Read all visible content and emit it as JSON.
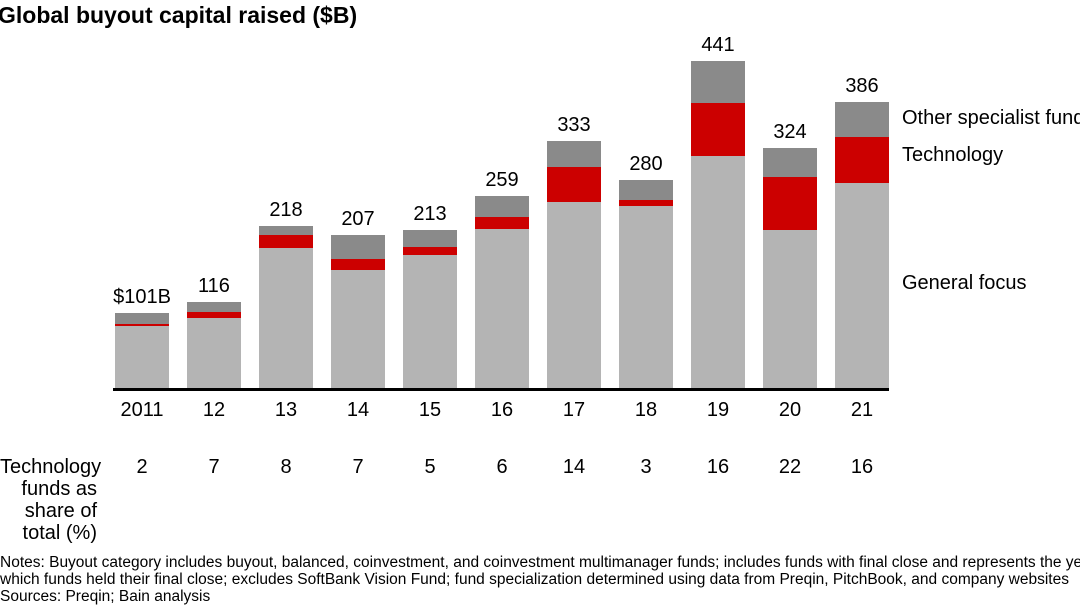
{
  "title": "Global buyout capital raised ($B)",
  "legend": {
    "other": "Other specialist funds",
    "technology": "Technology",
    "general": "General focus"
  },
  "row_label": {
    "line1": "Technology",
    "line2": "funds as",
    "line3": "share of",
    "line4": "total (%)"
  },
  "notes": {
    "line1": "Notes: Buyout category includes buyout, balanced, coinvestment, and coinvestment multimanager funds; includes funds with final close and represents the year in",
    "line2": "which funds held their final close; excludes SoftBank Vision Fund; fund specialization determined using data from Preqin, PitchBook, and company websites",
    "sources": "Sources: Preqin; Bain analysis"
  },
  "colors": {
    "general": "#b4b4b4",
    "technology": "#cc0000",
    "other": "#8a8a8a",
    "axis": "#000000"
  },
  "chart_data": {
    "type": "bar",
    "stacked": true,
    "title": "Global buyout capital raised ($B)",
    "categories": [
      "2011",
      "12",
      "13",
      "14",
      "15",
      "16",
      "17",
      "18",
      "19",
      "20",
      "21"
    ],
    "totals": [
      101,
      116,
      218,
      207,
      213,
      259,
      333,
      280,
      441,
      324,
      386
    ],
    "total_labels": [
      "$101B",
      "116",
      "218",
      "207",
      "213",
      "259",
      "333",
      "280",
      "441",
      "324",
      "386"
    ],
    "series": [
      {
        "name": "General focus",
        "color": "#b4b4b4",
        "values": [
          84,
          95,
          189,
          159,
          179,
          215,
          251,
          246,
          313,
          213,
          277
        ]
      },
      {
        "name": "Technology",
        "color": "#cc0000",
        "values": [
          2,
          8,
          17,
          15,
          11,
          16,
          47,
          8,
          71,
          71,
          62
        ]
      },
      {
        "name": "Other specialist funds",
        "color": "#8a8a8a",
        "values": [
          15,
          13,
          12,
          33,
          23,
          28,
          35,
          26,
          57,
          40,
          47
        ]
      }
    ],
    "tech_share_row": {
      "label": "Technology funds as share of total (%)",
      "values": [
        2,
        7,
        8,
        7,
        5,
        6,
        14,
        3,
        16,
        22,
        16
      ]
    },
    "ylabel": "",
    "xlabel": "",
    "ylim": [
      0,
      450
    ],
    "grid": false,
    "legend_position": "right-of-last-bar"
  }
}
